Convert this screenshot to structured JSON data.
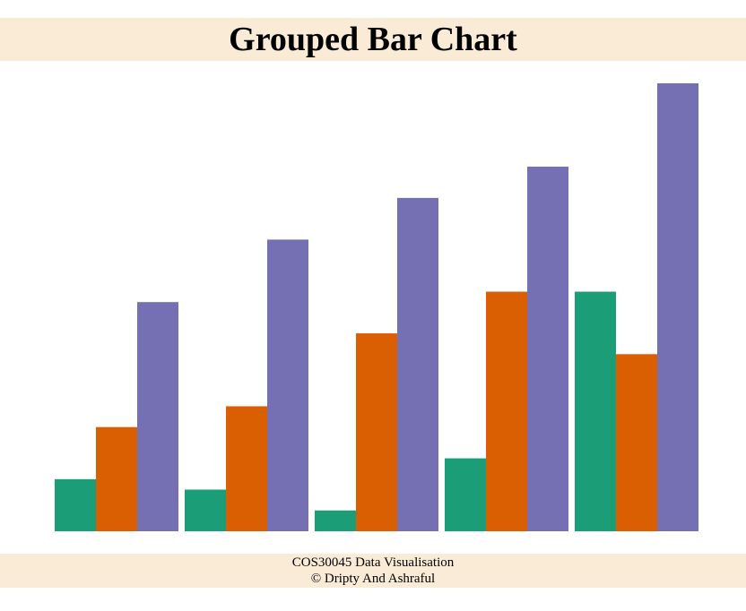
{
  "header": {
    "title": "Grouped Bar Chart"
  },
  "footer": {
    "course": "COS30045 Data Visualisation",
    "credit": "© Dripty And Ashraful"
  },
  "colors": {
    "header_bg": "#faebd7",
    "series": [
      "#1b9e77",
      "#d95f02",
      "#7570b3"
    ]
  },
  "chart_data": {
    "type": "bar",
    "title": "Grouped Bar Chart",
    "categories": [
      "",
      "",
      "",
      "",
      ""
    ],
    "series": [
      {
        "values": [
          5,
          4,
          2,
          7,
          23
        ]
      },
      {
        "values": [
          10,
          12,
          19,
          23,
          17
        ]
      },
      {
        "values": [
          22,
          28,
          32,
          35,
          43
        ]
      }
    ],
    "ylim": [
      0,
      43
    ],
    "grid": false,
    "axes_visible": false,
    "legend": "none"
  }
}
